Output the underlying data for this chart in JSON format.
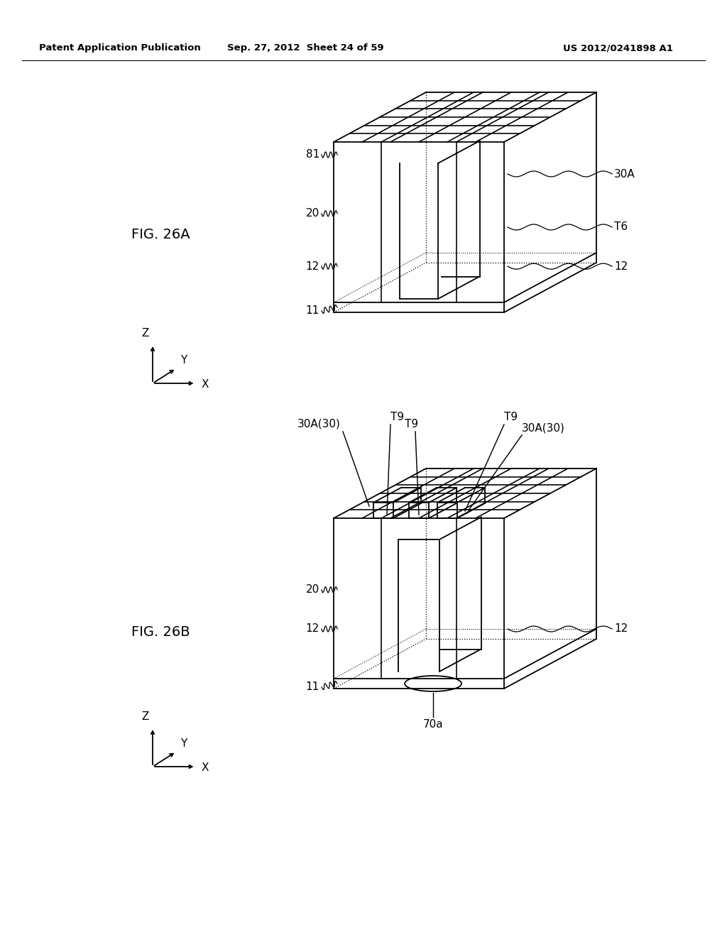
{
  "header_left": "Patent Application Publication",
  "header_center": "Sep. 27, 2012  Sheet 24 of 59",
  "header_right": "US 2012/0241898 A1",
  "fig_a_label": "FIG. 26A",
  "fig_b_label": "FIG. 26B",
  "background_color": "#ffffff",
  "line_color": "#000000",
  "lw": 1.3
}
